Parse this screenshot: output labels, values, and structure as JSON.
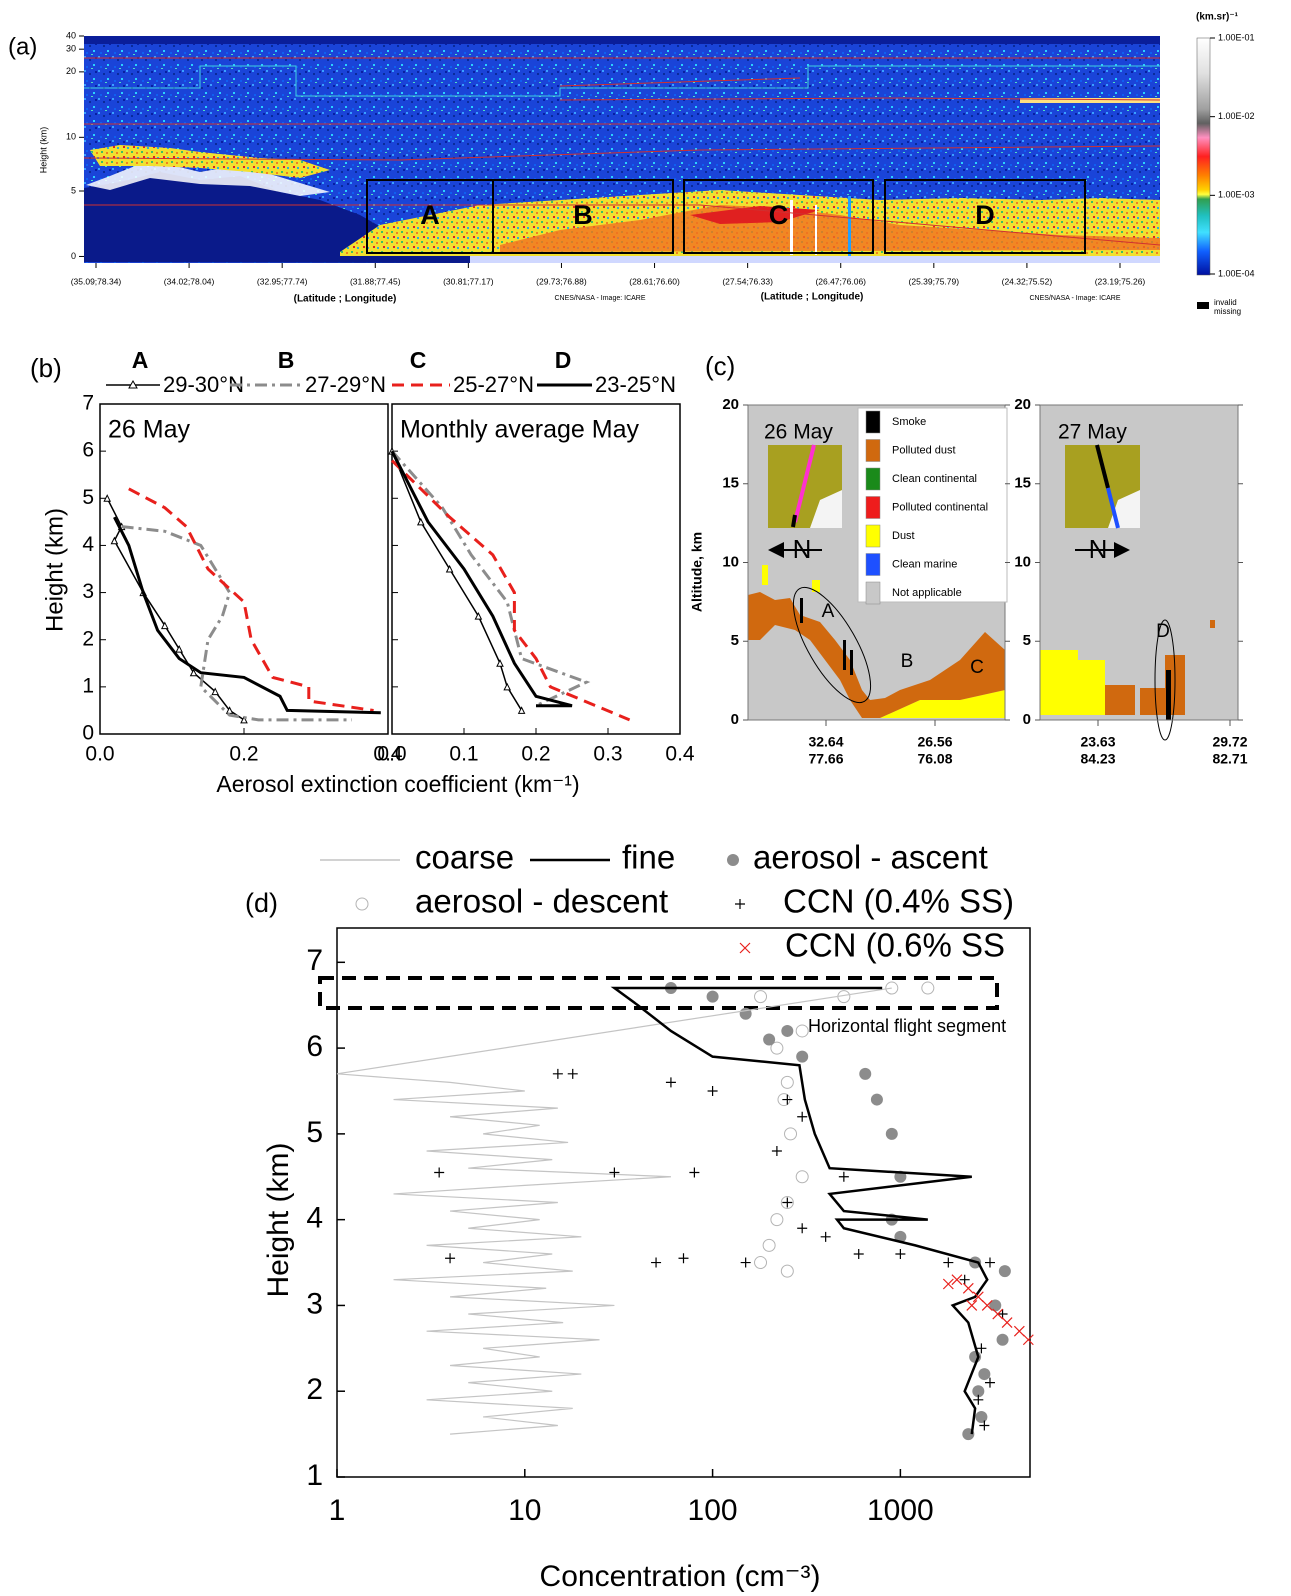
{
  "chart_data": [
    {
      "type": "curtain",
      "panel_label": "(a)",
      "y_label": "Height (km)",
      "x_label": "(Latitude ; Longitude)",
      "source": "CNES/NASA - Image: ICARE",
      "categories": [
        "(35.09;78.34)",
        "(34.02;78.04)",
        "(32.95;77.74)",
        "(31.88;77.45)",
        "(30.81;77.17)",
        "(29.73;76.88)",
        "(28.61;76.60)",
        "(27.54;76.33)",
        "(26.47;76.06)",
        "(25.39;75.79)",
        "(24.32;75.52)",
        "(23.19;75.26)"
      ],
      "ylim": [
        -0.5,
        40
      ],
      "yticks": [
        0,
        5,
        10,
        20,
        30,
        40
      ],
      "regions": [
        "A",
        "B",
        "C",
        "D"
      ],
      "colorbar": {
        "title": "(km.sr)⁻¹",
        "scale": "log",
        "lim": [
          0.0001,
          0.1
        ],
        "ticks": [
          {
            "value": 0.1,
            "label": "1.00E-01"
          },
          {
            "value": 0.01,
            "label": "1.00E-02"
          },
          {
            "value": 0.001,
            "label": "1.00E-03"
          },
          {
            "value": 0.0001,
            "label": "1.00E-04"
          }
        ],
        "missing_label": [
          "invalid",
          "missing"
        ]
      }
    },
    {
      "type": "profile",
      "panel_label": "(b)",
      "y_label": "Height (km)",
      "x_label": "Aerosol extinction coefficient (km⁻¹)",
      "xlim": [
        0,
        0.4
      ],
      "ylim": [
        0,
        7
      ],
      "yticks": [
        0,
        1,
        2,
        3,
        4,
        5,
        6,
        7
      ],
      "series": [
        {
          "label": "A",
          "name": "29-30°N",
          "color": "#000000",
          "style": "solid",
          "width": 1.5,
          "marker": "triangle"
        },
        {
          "label": "B",
          "name": "27-29°N",
          "color": "#8c8c8c",
          "style": "dashdot",
          "width": 3,
          "marker": "none"
        },
        {
          "label": "C",
          "name": "25-27°N",
          "color": "#e8201c",
          "style": "dashed",
          "width": 3,
          "marker": "none"
        },
        {
          "label": "D",
          "name": "23-25°N",
          "color": "#000000",
          "style": "solid",
          "width": 3,
          "marker": "none"
        }
      ],
      "panels": [
        {
          "title": "26 May",
          "xticks": [
            {
              "value": 0,
              "label": "0.0"
            },
            {
              "value": 0.2,
              "label": "0.2"
            },
            {
              "value": 0.4,
              "label": "0.4"
            }
          ],
          "profiles": [
            {
              "x": [
                0.01,
                0.03,
                0.02,
                0.06,
                0.09,
                0.11,
                0.13,
                0.16,
                0.18,
                0.2
              ],
              "y": [
                5.0,
                4.4,
                4.1,
                3.0,
                2.3,
                1.8,
                1.3,
                0.9,
                0.5,
                0.3
              ]
            },
            {
              "x": [
                0.03,
                0.09,
                0.14,
                0.16,
                0.18,
                0.17,
                0.15,
                0.14,
                0.18,
                0.22,
                0.35
              ],
              "y": [
                4.4,
                4.3,
                4.0,
                3.5,
                3.0,
                2.5,
                2.0,
                1.0,
                0.4,
                0.3,
                0.3
              ]
            },
            {
              "x": [
                0.04,
                0.09,
                0.12,
                0.15,
                0.2,
                0.21,
                0.24,
                0.29,
                0.29,
                0.38
              ],
              "y": [
                5.2,
                4.8,
                4.4,
                3.5,
                2.8,
                2.0,
                1.2,
                1.0,
                0.7,
                0.5
              ]
            },
            {
              "x": [
                0.02,
                0.04,
                0.06,
                0.08,
                0.11,
                0.14,
                0.2,
                0.25,
                0.26,
                0.39
              ],
              "y": [
                4.6,
                4.0,
                3.0,
                2.2,
                1.6,
                1.3,
                1.2,
                0.8,
                0.5,
                0.45
              ]
            }
          ]
        },
        {
          "title": "Monthly average May",
          "xticks": [
            {
              "value": 0,
              "label": "0.0"
            },
            0.1,
            0.2,
            0.3,
            0.4
          ],
          "profiles": [
            {
              "x": [
                0.0,
                0.04,
                0.08,
                0.12,
                0.15,
                0.16,
                0.18
              ],
              "y": [
                6.0,
                4.5,
                3.5,
                2.5,
                1.5,
                1.0,
                0.5
              ]
            },
            {
              "x": [
                0.0,
                0.07,
                0.11,
                0.16,
                0.18,
                0.27,
                0.2
              ],
              "y": [
                6.0,
                4.8,
                3.8,
                2.8,
                1.6,
                1.1,
                0.6
              ]
            },
            {
              "x": [
                0.0,
                0.08,
                0.14,
                0.17,
                0.17,
                0.2,
                0.22,
                0.33
              ],
              "y": [
                5.8,
                4.6,
                3.8,
                3.0,
                2.2,
                1.6,
                1.0,
                0.3
              ]
            },
            {
              "x": [
                0.0,
                0.05,
                0.1,
                0.14,
                0.17,
                0.2,
                0.25,
                0.2
              ],
              "y": [
                6.0,
                4.5,
                3.5,
                2.5,
                1.5,
                0.8,
                0.6,
                0.6
              ]
            }
          ]
        }
      ]
    },
    {
      "type": "classification",
      "panel_label": "(c)",
      "y_label": "Altitude, km",
      "ylim": [
        0,
        20
      ],
      "yticks": [
        0,
        5,
        10,
        15,
        20
      ],
      "north_label": "N",
      "legend": [
        {
          "name": "Smoke",
          "color": "#000000"
        },
        {
          "name": "Polluted dust",
          "color": "#d0690f"
        },
        {
          "name": "Clean continental",
          "color": "#1a8a1a"
        },
        {
          "name": "Polluted continental",
          "color": "#ee1c1c"
        },
        {
          "name": "Dust",
          "color": "#ffff00"
        },
        {
          "name": "Clean marine",
          "color": "#1e50ff"
        },
        {
          "name": "Not applicable",
          "color": "#c8c8c8"
        }
      ],
      "panels": [
        {
          "date": "26 May",
          "xticks": [
            [
              "32.64",
              "77.66"
            ],
            [
              "26.56",
              "76.08"
            ]
          ],
          "labels": [
            "A",
            "B",
            "C"
          ]
        },
        {
          "date": "27 May",
          "xticks": [
            [
              "23.63",
              "84.23"
            ],
            [
              "29.72",
              "82.71"
            ]
          ],
          "labels": [
            "D"
          ]
        }
      ]
    },
    {
      "type": "scatter",
      "panel_label": "(d)",
      "x_label": "Concentration (cm⁻³)",
      "y_label": "Height (km)",
      "xscale": "log",
      "xlim": [
        1,
        4900
      ],
      "ylim": [
        1,
        7.4
      ],
      "xticks": [
        1,
        10,
        100,
        1000
      ],
      "yticks": [
        1,
        2,
        3,
        4,
        5,
        6,
        7
      ],
      "annotation": "Horizontal flight segment",
      "series": [
        {
          "name": "coarse",
          "color": "#c4c4c4",
          "marker": "line",
          "x": [
            4,
            15,
            6,
            18,
            3,
            14,
            5,
            20,
            4,
            12,
            6,
            25,
            3,
            16,
            5,
            30,
            4,
            13,
            2,
            18,
            6,
            14,
            3,
            20,
            5,
            12,
            4,
            15,
            2,
            10,
            60,
            5,
            14,
            3,
            17,
            6,
            12,
            4,
            15,
            2,
            10,
            4,
            1,
            900
          ],
          "y": [
            1.5,
            1.6,
            1.7,
            1.8,
            1.9,
            2.0,
            2.1,
            2.2,
            2.3,
            2.4,
            2.5,
            2.6,
            2.7,
            2.8,
            2.9,
            3.0,
            3.1,
            3.2,
            3.3,
            3.4,
            3.5,
            3.6,
            3.7,
            3.8,
            3.9,
            4.0,
            4.1,
            4.2,
            4.3,
            4.4,
            4.5,
            4.6,
            4.7,
            4.8,
            4.9,
            5.0,
            5.1,
            5.2,
            5.3,
            5.4,
            5.5,
            5.6,
            5.7,
            6.7
          ]
        },
        {
          "name": "fine",
          "color": "#000000",
          "marker": "line",
          "x": [
            2400,
            2500,
            2200,
            2600,
            2300,
            1900,
            2500,
            2900,
            2600,
            1200,
            500,
            460,
            1400,
            500,
            420,
            2400,
            420,
            350,
            310,
            290,
            100,
            60,
            40,
            30,
            800
          ],
          "y": [
            1.5,
            1.8,
            2.0,
            2.4,
            2.8,
            3.0,
            3.1,
            3.3,
            3.5,
            3.7,
            3.9,
            4.0,
            4.0,
            4.1,
            4.3,
            4.5,
            4.6,
            5.0,
            5.4,
            5.8,
            5.9,
            6.2,
            6.5,
            6.7,
            6.7
          ]
        },
        {
          "name": "aerosol - ascent",
          "color": "#8c8c8c",
          "marker": "filled-circle",
          "x": [
            2300,
            2700,
            2600,
            2800,
            2500,
            3500,
            3200,
            3600,
            2500,
            1000,
            900,
            1000,
            900,
            750,
            650,
            300,
            200,
            250,
            150,
            100,
            60
          ],
          "y": [
            1.5,
            1.7,
            2.0,
            2.2,
            2.4,
            2.6,
            3.0,
            3.4,
            3.5,
            3.8,
            4.0,
            4.5,
            5.0,
            5.4,
            5.7,
            5.9,
            6.1,
            6.2,
            6.4,
            6.6,
            6.7
          ]
        },
        {
          "name": "aerosol - descent",
          "color": "#b4b4b4",
          "marker": "open-circle",
          "x": [
            180,
            250,
            200,
            220,
            300,
            250,
            260,
            240,
            250,
            220,
            300,
            500,
            900,
            1400,
            180
          ],
          "y": [
            3.5,
            3.4,
            3.7,
            4.0,
            4.5,
            4.2,
            5.0,
            5.4,
            5.6,
            6.0,
            6.2,
            6.6,
            6.7,
            6.7,
            6.6
          ]
        },
        {
          "name": "CCN (0.4% SS)",
          "color": "#000000",
          "marker": "plus",
          "x": [
            2800,
            2600,
            3000,
            2700,
            3500,
            2200,
            3000,
            1800,
            1000,
            600,
            4,
            50,
            70,
            150,
            400,
            300,
            250,
            500,
            3.5,
            30,
            80,
            220,
            300,
            250,
            100,
            60,
            18,
            15
          ],
          "y": [
            1.6,
            1.9,
            2.1,
            2.5,
            2.9,
            3.3,
            3.5,
            3.5,
            3.6,
            3.6,
            3.55,
            3.5,
            3.55,
            3.5,
            3.8,
            3.9,
            4.2,
            4.5,
            4.55,
            4.55,
            4.55,
            4.8,
            5.2,
            5.4,
            5.5,
            5.6,
            5.7,
            5.7
          ]
        },
        {
          "name": "CCN (0.6% SS",
          "color": "#e8201c",
          "marker": "cross",
          "x": [
            2000,
            2300,
            2600,
            2900,
            3300,
            3700,
            4300,
            4800,
            1800,
            2400
          ],
          "y": [
            3.3,
            3.2,
            3.1,
            3.0,
            2.9,
            2.8,
            2.7,
            2.6,
            3.25,
            3.0
          ]
        }
      ]
    }
  ]
}
